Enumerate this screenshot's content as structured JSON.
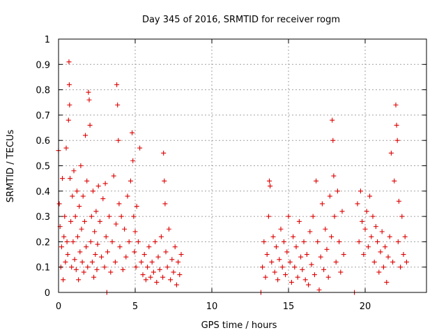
{
  "chart_data": {
    "type": "scatter",
    "title": "Day 345 of 2016, SRMTID for receiver rogm",
    "xlabel": "GPS time / hours",
    "ylabel": "SRMTID / TECUs",
    "xlim": [
      0,
      24
    ],
    "ylim": [
      0,
      1
    ],
    "xticks": [
      0,
      5,
      10,
      15,
      20
    ],
    "xtick_labels": [
      "0",
      "5",
      "10",
      "15",
      "20"
    ],
    "yticks": [
      0,
      0.1,
      0.2,
      0.3,
      0.4,
      0.5,
      0.6,
      0.7,
      0.8,
      0.9,
      1
    ],
    "ytick_labels": [
      "0",
      "0.1",
      "0.2",
      "0.3",
      "0.4",
      "0.5",
      "0.6",
      "0.7",
      "0.8",
      "0.9",
      "1"
    ],
    "grid": true,
    "marker": "+",
    "color": "#dd0000",
    "series": [
      {
        "name": "SRMTID",
        "points": [
          [
            0.0,
            0.56
          ],
          [
            0.05,
            0.35
          ],
          [
            0.1,
            0.26
          ],
          [
            0.15,
            0.1
          ],
          [
            0.2,
            0.18
          ],
          [
            0.25,
            0.45
          ],
          [
            0.3,
            0.05
          ],
          [
            0.35,
            0.22
          ],
          [
            0.4,
            0.3
          ],
          [
            0.45,
            0.12
          ],
          [
            0.5,
            0.57
          ],
          [
            0.55,
            0.2
          ],
          [
            0.6,
            0.15
          ],
          [
            0.65,
            0.68
          ],
          [
            0.68,
            0.91
          ],
          [
            0.7,
            0.82
          ],
          [
            0.72,
            0.74
          ],
          [
            0.75,
            0.45
          ],
          [
            0.8,
            0.28
          ],
          [
            0.85,
            0.1
          ],
          [
            0.9,
            0.38
          ],
          [
            0.95,
            0.2
          ],
          [
            1.0,
            0.48
          ],
          [
            1.05,
            0.13
          ],
          [
            1.1,
            0.3
          ],
          [
            1.15,
            0.09
          ],
          [
            1.2,
            0.4
          ],
          [
            1.25,
            0.22
          ],
          [
            1.3,
            0.05
          ],
          [
            1.35,
            0.34
          ],
          [
            1.4,
            0.16
          ],
          [
            1.45,
            0.5
          ],
          [
            1.5,
            0.25
          ],
          [
            1.55,
            0.12
          ],
          [
            1.6,
            0.38
          ],
          [
            1.65,
            0.08
          ],
          [
            1.7,
            0.28
          ],
          [
            1.75,
            0.62
          ],
          [
            1.8,
            0.18
          ],
          [
            1.85,
            0.44
          ],
          [
            1.9,
            0.1
          ],
          [
            1.95,
            0.79
          ],
          [
            2.0,
            0.76
          ],
          [
            2.05,
            0.66
          ],
          [
            2.1,
            0.2
          ],
          [
            2.15,
            0.3
          ],
          [
            2.2,
            0.12
          ],
          [
            2.25,
            0.4
          ],
          [
            2.3,
            0.06
          ],
          [
            2.35,
            0.24
          ],
          [
            2.4,
            0.15
          ],
          [
            2.45,
            0.32
          ],
          [
            2.5,
            0.09
          ],
          [
            2.55,
            0.19
          ],
          [
            2.6,
            0.42
          ],
          [
            2.7,
            0.28
          ],
          [
            2.8,
            0.14
          ],
          [
            2.9,
            0.37
          ],
          [
            3.0,
            0.1
          ],
          [
            3.05,
            0.43
          ],
          [
            3.1,
            0.22
          ],
          [
            3.15,
            0.0
          ],
          [
            3.2,
            0.16
          ],
          [
            3.3,
            0.3
          ],
          [
            3.4,
            0.08
          ],
          [
            3.5,
            0.2
          ],
          [
            3.6,
            0.46
          ],
          [
            3.7,
            0.12
          ],
          [
            3.75,
            0.27
          ],
          [
            3.8,
            0.82
          ],
          [
            3.85,
            0.74
          ],
          [
            3.9,
            0.6
          ],
          [
            3.95,
            0.35
          ],
          [
            4.0,
            0.18
          ],
          [
            4.1,
            0.3
          ],
          [
            4.2,
            0.09
          ],
          [
            4.3,
            0.25
          ],
          [
            4.4,
            0.14
          ],
          [
            4.5,
            0.38
          ],
          [
            4.6,
            0.2
          ],
          [
            4.7,
            0.44
          ],
          [
            4.8,
            0.63
          ],
          [
            4.85,
            0.52
          ],
          [
            4.9,
            0.3
          ],
          [
            4.95,
            0.16
          ],
          [
            5.0,
            0.24
          ],
          [
            5.05,
            0.1
          ],
          [
            5.1,
            0.34
          ],
          [
            5.2,
            0.2
          ],
          [
            5.3,
            0.57
          ],
          [
            5.4,
            0.12
          ],
          [
            5.5,
            0.07
          ],
          [
            5.6,
            0.15
          ],
          [
            5.7,
            0.05
          ],
          [
            5.8,
            0.1
          ],
          [
            5.9,
            0.18
          ],
          [
            6.0,
            0.06
          ],
          [
            6.1,
            0.12
          ],
          [
            6.2,
            0.08
          ],
          [
            6.3,
            0.2
          ],
          [
            6.4,
            0.04
          ],
          [
            6.5,
            0.14
          ],
          [
            6.6,
            0.09
          ],
          [
            6.7,
            0.22
          ],
          [
            6.8,
            0.06
          ],
          [
            6.85,
            0.55
          ],
          [
            6.9,
            0.44
          ],
          [
            6.95,
            0.35
          ],
          [
            7.0,
            0.16
          ],
          [
            7.1,
            0.1
          ],
          [
            7.2,
            0.25
          ],
          [
            7.3,
            0.05
          ],
          [
            7.4,
            0.13
          ],
          [
            7.5,
            0.08
          ],
          [
            7.6,
            0.18
          ],
          [
            7.7,
            0.03
          ],
          [
            7.8,
            0.12
          ],
          [
            7.9,
            0.07
          ],
          [
            8.0,
            0.15
          ],
          [
            13.2,
            0.0
          ],
          [
            13.3,
            0.1
          ],
          [
            13.4,
            0.2
          ],
          [
            13.5,
            0.06
          ],
          [
            13.6,
            0.15
          ],
          [
            13.7,
            0.3
          ],
          [
            13.75,
            0.44
          ],
          [
            13.8,
            0.42
          ],
          [
            13.9,
            0.12
          ],
          [
            14.0,
            0.22
          ],
          [
            14.1,
            0.08
          ],
          [
            14.2,
            0.18
          ],
          [
            14.3,
            0.05
          ],
          [
            14.4,
            0.13
          ],
          [
            14.5,
            0.25
          ],
          [
            14.6,
            0.1
          ],
          [
            14.7,
            0.2
          ],
          [
            14.8,
            0.07
          ],
          [
            14.9,
            0.16
          ],
          [
            15.0,
            0.3
          ],
          [
            15.1,
            0.12
          ],
          [
            15.2,
            0.04
          ],
          [
            15.3,
            0.22
          ],
          [
            15.4,
            0.1
          ],
          [
            15.5,
            0.18
          ],
          [
            15.6,
            0.06
          ],
          [
            15.7,
            0.28
          ],
          [
            15.8,
            0.14
          ],
          [
            15.9,
            0.09
          ],
          [
            16.0,
            0.2
          ],
          [
            16.1,
            0.05
          ],
          [
            16.2,
            0.15
          ],
          [
            16.3,
            0.03
          ],
          [
            16.4,
            0.24
          ],
          [
            16.5,
            0.11
          ],
          [
            16.6,
            0.3
          ],
          [
            16.7,
            0.07
          ],
          [
            16.8,
            0.44
          ],
          [
            16.9,
            0.2
          ],
          [
            17.0,
            0.01
          ],
          [
            17.1,
            0.14
          ],
          [
            17.2,
            0.35
          ],
          [
            17.3,
            0.09
          ],
          [
            17.4,
            0.25
          ],
          [
            17.5,
            0.17
          ],
          [
            17.6,
            0.06
          ],
          [
            17.7,
            0.38
          ],
          [
            17.8,
            0.22
          ],
          [
            17.85,
            0.68
          ],
          [
            17.9,
            0.6
          ],
          [
            17.95,
            0.46
          ],
          [
            18.0,
            0.3
          ],
          [
            18.1,
            0.12
          ],
          [
            18.2,
            0.4
          ],
          [
            18.3,
            0.2
          ],
          [
            18.4,
            0.08
          ],
          [
            18.5,
            0.32
          ],
          [
            18.6,
            0.15
          ],
          [
            19.3,
            0.0
          ],
          [
            19.5,
            0.35
          ],
          [
            19.6,
            0.2
          ],
          [
            19.7,
            0.4
          ],
          [
            19.8,
            0.28
          ],
          [
            19.9,
            0.15
          ],
          [
            20.0,
            0.25
          ],
          [
            20.1,
            0.32
          ],
          [
            20.2,
            0.18
          ],
          [
            20.3,
            0.38
          ],
          [
            20.4,
            0.22
          ],
          [
            20.5,
            0.3
          ],
          [
            20.6,
            0.12
          ],
          [
            20.7,
            0.26
          ],
          [
            20.8,
            0.2
          ],
          [
            20.9,
            0.08
          ],
          [
            21.0,
            0.16
          ],
          [
            21.1,
            0.24
          ],
          [
            21.2,
            0.1
          ],
          [
            21.3,
            0.18
          ],
          [
            21.4,
            0.04
          ],
          [
            21.5,
            0.14
          ],
          [
            21.6,
            0.22
          ],
          [
            21.7,
            0.55
          ],
          [
            21.8,
            0.12
          ],
          [
            21.9,
            0.44
          ],
          [
            22.0,
            0.74
          ],
          [
            22.05,
            0.66
          ],
          [
            22.1,
            0.6
          ],
          [
            22.15,
            0.2
          ],
          [
            22.2,
            0.36
          ],
          [
            22.3,
            0.1
          ],
          [
            22.4,
            0.3
          ],
          [
            22.5,
            0.15
          ],
          [
            22.6,
            0.22
          ],
          [
            22.7,
            0.12
          ]
        ]
      }
    ]
  }
}
